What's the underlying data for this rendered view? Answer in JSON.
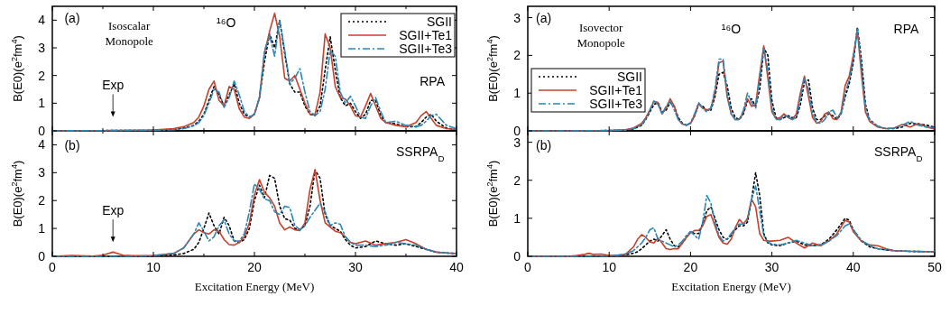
{
  "chart_data": [
    {
      "type": "line",
      "tick_labels": "y",
      "ylabel": "B(E0)(e$^{2}$fm$^{4}$)",
      "xlim": [
        0,
        40
      ],
      "xticks": [
        0,
        {
          "value": 5,
          "label": null
        },
        10,
        {
          "value": 15,
          "label": null
        },
        20,
        {
          "value": 25,
          "label": null
        },
        30,
        {
          "value": 35,
          "label": null
        },
        40
      ],
      "ylim": [
        0,
        4.5
      ],
      "yticks": [
        0,
        1,
        2,
        3,
        4
      ],
      "legend": "top right",
      "annotations": [
        "(a)",
        "Isoscalar Monopole",
        "¹⁶O",
        "RPA",
        "Exp"
      ],
      "x": [
        0,
        5,
        10,
        12,
        13,
        14,
        14.5,
        15,
        15.5,
        16,
        16.5,
        17,
        17.5,
        18,
        18.5,
        19,
        19.5,
        20,
        20.5,
        21,
        21.5,
        22,
        22.5,
        23,
        23.5,
        24,
        24.5,
        25,
        25.5,
        26,
        26.5,
        27,
        27.5,
        28,
        28.5,
        29,
        29.5,
        30,
        30.5,
        31,
        31.5,
        32,
        32.5,
        33,
        34,
        35,
        36,
        36.5,
        37,
        37.5,
        38,
        39,
        40
      ],
      "series": [
        {
          "name": "SGII",
          "color": "#000000",
          "line_style": "dotted",
          "values": [
            0,
            0.01,
            0.02,
            0.05,
            0.1,
            0.2,
            0.35,
            0.6,
            1.1,
            1.6,
            1.3,
            0.9,
            1.3,
            1.7,
            1.0,
            0.6,
            0.5,
            0.6,
            1.2,
            2.5,
            3.5,
            3.0,
            4.0,
            2.8,
            1.7,
            1.4,
            1.4,
            0.9,
            0.6,
            0.55,
            0.9,
            2.2,
            3.4,
            2.2,
            1.2,
            0.9,
            1.0,
            0.7,
            0.45,
            0.6,
            1.1,
            1.1,
            0.55,
            0.3,
            0.25,
            0.15,
            0.15,
            0.3,
            0.5,
            0.6,
            0.35,
            0.1,
            0.05
          ]
        },
        {
          "name": "SGII+Te1",
          "color": "#c8402c",
          "line_style": "solid",
          "values": [
            0,
            0.01,
            0.03,
            0.08,
            0.15,
            0.3,
            0.5,
            0.9,
            1.5,
            1.8,
            1.1,
            0.9,
            1.6,
            1.5,
            0.8,
            0.5,
            0.45,
            0.6,
            1.2,
            2.8,
            3.6,
            4.25,
            3.4,
            1.9,
            1.8,
            2.0,
            1.5,
            1.0,
            0.6,
            0.6,
            1.4,
            3.5,
            3.0,
            1.6,
            1.2,
            1.15,
            0.9,
            0.55,
            0.5,
            0.9,
            1.35,
            0.9,
            0.45,
            0.3,
            0.2,
            0.15,
            0.3,
            0.55,
            0.7,
            0.45,
            0.2,
            0.08,
            0.05
          ]
        },
        {
          "name": "SGII+Te3",
          "color": "#2a86b5",
          "line_style": "dashed",
          "values": [
            0,
            0.01,
            0.02,
            0.04,
            0.08,
            0.18,
            0.3,
            0.55,
            1.0,
            1.5,
            1.4,
            0.85,
            1.2,
            1.8,
            1.3,
            0.7,
            0.5,
            0.6,
            1.2,
            2.9,
            3.45,
            2.7,
            4.0,
            2.9,
            1.7,
            1.9,
            2.25,
            1.4,
            0.7,
            0.55,
            0.7,
            1.5,
            2.9,
            2.7,
            1.4,
            1.0,
            1.25,
            0.9,
            0.5,
            0.45,
            0.9,
            1.2,
            0.7,
            0.3,
            0.35,
            0.2,
            0.15,
            0.2,
            0.35,
            0.55,
            0.6,
            0.2,
            0.08
          ]
        }
      ]
    },
    {
      "type": "line",
      "tick_labels": "y",
      "ylabel": "B(E0)(e$^{2}$fm$^{4}$)",
      "xlim": [
        0,
        50
      ],
      "xticks": [
        0,
        10,
        20,
        30,
        40,
        50
      ],
      "ylim": [
        0,
        3.3
      ],
      "yticks": [
        0,
        1,
        2,
        3
      ],
      "legend": "left",
      "annotations": [
        "(a)",
        "Isovector Monopole",
        "¹⁶O",
        "RPA"
      ],
      "x": [
        0,
        5,
        10,
        12,
        13,
        14,
        14.5,
        15,
        15.5,
        16,
        16.5,
        17,
        17.5,
        18,
        18.5,
        19,
        19.5,
        20,
        20.5,
        21,
        21.5,
        22,
        22.5,
        23,
        23.5,
        24,
        24.5,
        25,
        25.5,
        26,
        26.5,
        27,
        27.5,
        28,
        28.5,
        29,
        29.5,
        30,
        30.5,
        31,
        31.5,
        32,
        32.5,
        33,
        33.5,
        34,
        34.5,
        35,
        35.5,
        36,
        36.5,
        37,
        37.5,
        38,
        38.5,
        39,
        39.5,
        40,
        40.5,
        41,
        41.5,
        42,
        43,
        44,
        45,
        46,
        47,
        48,
        49,
        50
      ],
      "series": [
        {
          "name": "SGII",
          "color": "#000000",
          "line_style": "dotted",
          "values": [
            0,
            0,
            0.01,
            0.02,
            0.05,
            0.15,
            0.3,
            0.5,
            0.7,
            0.75,
            0.5,
            0.55,
            0.75,
            0.65,
            0.35,
            0.2,
            0.15,
            0.2,
            0.4,
            0.7,
            0.65,
            0.55,
            0.55,
            0.9,
            1.5,
            1.55,
            1.2,
            0.6,
            0.35,
            0.3,
            0.45,
            0.8,
            0.85,
            0.65,
            1.1,
            2.2,
            2.0,
            0.8,
            0.35,
            0.3,
            0.35,
            0.4,
            0.35,
            0.35,
            0.7,
            1.3,
            1.35,
            0.6,
            0.3,
            0.3,
            0.4,
            0.45,
            0.4,
            0.3,
            0.45,
            0.9,
            1.25,
            1.8,
            2.75,
            1.9,
            0.7,
            0.3,
            0.12,
            0.06,
            0.06,
            0.1,
            0.2,
            0.18,
            0.15,
            0.1
          ]
        },
        {
          "name": "SGII+Te1",
          "color": "#c8402c",
          "line_style": "solid",
          "values": [
            0,
            0,
            0.01,
            0.03,
            0.08,
            0.2,
            0.35,
            0.55,
            0.78,
            0.75,
            0.45,
            0.6,
            0.85,
            0.65,
            0.3,
            0.18,
            0.15,
            0.2,
            0.4,
            0.72,
            0.6,
            0.55,
            0.6,
            1.0,
            1.8,
            1.85,
            0.9,
            0.45,
            0.3,
            0.3,
            0.5,
            0.85,
            0.65,
            0.7,
            1.5,
            2.25,
            1.4,
            0.5,
            0.32,
            0.35,
            0.45,
            0.35,
            0.3,
            0.45,
            1.0,
            1.45,
            0.9,
            0.35,
            0.2,
            0.25,
            0.45,
            0.5,
            0.32,
            0.3,
            0.5,
            1.2,
            1.45,
            2.0,
            2.65,
            1.5,
            0.5,
            0.25,
            0.1,
            0.06,
            0.07,
            0.17,
            0.1,
            0.2,
            0.1,
            0.05
          ]
        },
        {
          "name": "SGII+Te3",
          "color": "#2a86b5",
          "line_style": "dashed",
          "values": [
            0,
            0,
            0.01,
            0.02,
            0.06,
            0.16,
            0.32,
            0.55,
            0.8,
            0.7,
            0.45,
            0.65,
            0.8,
            0.55,
            0.3,
            0.18,
            0.15,
            0.22,
            0.45,
            0.75,
            0.6,
            0.5,
            0.6,
            1.1,
            1.9,
            1.9,
            1.0,
            0.45,
            0.3,
            0.3,
            0.55,
            1.0,
            0.75,
            0.6,
            1.4,
            2.2,
            1.6,
            0.6,
            0.3,
            0.3,
            0.4,
            0.38,
            0.3,
            0.35,
            0.9,
            1.4,
            1.1,
            0.45,
            0.22,
            0.2,
            0.3,
            0.5,
            0.55,
            0.35,
            0.45,
            1.0,
            1.35,
            1.9,
            2.7,
            1.7,
            0.6,
            0.28,
            0.12,
            0.06,
            0.07,
            0.15,
            0.25,
            0.15,
            0.1,
            0.08
          ]
        }
      ]
    },
    {
      "type": "line",
      "xlabel": "Excitation Energy (MeV)",
      "ylabel": "B(E0)(e$^{2}$fm$^{4}$)",
      "xlim": [
        0,
        40
      ],
      "xticks": [
        0,
        {
          "value": 5,
          "label": null
        },
        10,
        {
          "value": 15,
          "label": null
        },
        20,
        {
          "value": 25,
          "label": null
        },
        30,
        {
          "value": 35,
          "label": null
        },
        40
      ],
      "ylim": [
        0,
        4.5
      ],
      "yticks": [
        0,
        1,
        2,
        3,
        4
      ],
      "annotations": [
        "(b)",
        "SSRPA$_{D}$",
        "Exp"
      ],
      "x": [
        0,
        2,
        4,
        5,
        5.5,
        6,
        6.5,
        7,
        8,
        10,
        12,
        13,
        14,
        14.5,
        15,
        15.5,
        16,
        16.5,
        17,
        17.5,
        18,
        18.5,
        19,
        19.5,
        20,
        20.5,
        21,
        21.5,
        22,
        22.5,
        23,
        23.5,
        24,
        24.5,
        25,
        25.5,
        26,
        26.5,
        27,
        27.5,
        28,
        28.5,
        29,
        29.5,
        30,
        31,
        32,
        33,
        34,
        35,
        36,
        37,
        38,
        39,
        40
      ],
      "series": [
        {
          "color": "#000000",
          "line_style": "dotted",
          "values": [
            0,
            0,
            0,
            0,
            0,
            0,
            0,
            0,
            0,
            0.01,
            0.05,
            0.1,
            0.25,
            0.5,
            1.0,
            1.55,
            1.1,
            0.8,
            1.4,
            1.1,
            0.55,
            0.5,
            0.6,
            1.0,
            2.0,
            2.55,
            2.1,
            2.9,
            2.8,
            1.8,
            1.35,
            1.3,
            1.0,
            0.95,
            1.1,
            1.8,
            3.1,
            2.8,
            1.5,
            1.1,
            1.0,
            0.9,
            0.6,
            0.4,
            0.3,
            0.35,
            0.55,
            0.45,
            0.4,
            0.45,
            0.35,
            0.25,
            0.15,
            0.12,
            0.1
          ]
        },
        {
          "color": "#c8402c",
          "line_style": "solid",
          "values": [
            0,
            0.03,
            0.01,
            0.04,
            0.1,
            0.15,
            0.1,
            0.04,
            0.02,
            0.03,
            0.1,
            0.3,
            0.8,
            0.95,
            0.85,
            0.8,
            0.95,
            0.9,
            0.6,
            0.42,
            0.4,
            0.5,
            0.7,
            1.2,
            2.2,
            2.75,
            2.3,
            2.1,
            1.8,
            1.2,
            0.95,
            1.05,
            0.95,
            0.92,
            1.2,
            2.4,
            3.1,
            2.0,
            1.2,
            1.05,
            0.9,
            0.85,
            0.7,
            0.5,
            0.45,
            0.55,
            0.4,
            0.45,
            0.5,
            0.6,
            0.45,
            0.25,
            0.15,
            0.12,
            0.1
          ]
        },
        {
          "color": "#2a86b5",
          "line_style": "dashed",
          "values": [
            0,
            0,
            0,
            0,
            0,
            0,
            0,
            0,
            0,
            0.02,
            0.1,
            0.3,
            0.8,
            1.2,
            0.9,
            0.55,
            0.7,
            1.1,
            1.3,
            0.8,
            0.55,
            0.55,
            0.8,
            1.6,
            2.6,
            2.4,
            2.05,
            2.0,
            1.6,
            1.5,
            1.8,
            1.75,
            1.1,
            0.95,
            1.1,
            1.4,
            1.65,
            1.9,
            1.6,
            1.1,
            1.2,
            1.15,
            0.7,
            0.5,
            0.4,
            0.4,
            0.35,
            0.4,
            0.5,
            0.45,
            0.4,
            0.25,
            0.15,
            0.12,
            0.1
          ]
        }
      ]
    },
    {
      "type": "line",
      "xlabel": "Excitation Energy (MeV)",
      "ylabel": "B(E0)(e$^{2}$fm$^{4}$)",
      "xlim": [
        0,
        50
      ],
      "xticks": [
        0,
        10,
        20,
        30,
        40,
        50
      ],
      "ylim": [
        0,
        3.3
      ],
      "yticks": [
        0,
        1,
        2,
        3
      ],
      "annotations": [
        "(b)",
        "SSRPA$_{D}$"
      ],
      "x": [
        0,
        5,
        6,
        7,
        7.5,
        8,
        9,
        10,
        11,
        12,
        13,
        13.5,
        14,
        14.5,
        15,
        15.5,
        16,
        16.5,
        17,
        17.5,
        18,
        18.5,
        19,
        19.5,
        20,
        20.5,
        21,
        21.5,
        22,
        22.5,
        23,
        23.5,
        24,
        24.5,
        25,
        25.5,
        26,
        26.5,
        27,
        27.5,
        28,
        28.5,
        29,
        29.5,
        30,
        31,
        32,
        33,
        34,
        35,
        36,
        37,
        38,
        39,
        39.5,
        40,
        41,
        42,
        43,
        44,
        45,
        47,
        50
      ],
      "series": [
        {
          "color": "#000000",
          "line_style": "dotted",
          "values": [
            0,
            0,
            0,
            0,
            0,
            0,
            0,
            0.01,
            0.02,
            0.04,
            0.08,
            0.12,
            0.2,
            0.3,
            0.4,
            0.45,
            0.4,
            0.55,
            0.7,
            0.45,
            0.28,
            0.25,
            0.35,
            0.5,
            0.65,
            0.6,
            0.6,
            0.85,
            1.2,
            1.3,
            1.0,
            0.7,
            0.5,
            0.45,
            0.55,
            0.7,
            0.8,
            0.8,
            0.9,
            1.5,
            2.2,
            1.6,
            0.6,
            0.35,
            0.3,
            0.28,
            0.35,
            0.4,
            0.3,
            0.28,
            0.3,
            0.45,
            0.7,
            1.0,
            0.95,
            0.7,
            0.4,
            0.25,
            0.2,
            0.17,
            0.15,
            0.13,
            0.12
          ]
        },
        {
          "color": "#c8402c",
          "line_style": "solid",
          "values": [
            0,
            0,
            0.02,
            0.05,
            0.08,
            0.05,
            0.06,
            0.02,
            0.02,
            0.05,
            0.25,
            0.45,
            0.57,
            0.5,
            0.38,
            0.35,
            0.48,
            0.35,
            0.2,
            0.18,
            0.2,
            0.2,
            0.35,
            0.5,
            0.62,
            0.68,
            0.68,
            0.8,
            1.05,
            1.1,
            0.8,
            0.5,
            0.35,
            0.32,
            0.45,
            0.75,
            0.97,
            0.85,
            1.0,
            1.5,
            1.3,
            0.6,
            0.42,
            0.4,
            0.4,
            0.42,
            0.5,
            0.35,
            0.22,
            0.35,
            0.28,
            0.4,
            0.6,
            0.95,
            0.9,
            0.65,
            0.4,
            0.3,
            0.28,
            0.2,
            0.15,
            0.13,
            0.12
          ]
        },
        {
          "color": "#2a86b5",
          "line_style": "dashed",
          "values": [
            0,
            0,
            0,
            0,
            0,
            0,
            0,
            0.01,
            0.03,
            0.06,
            0.15,
            0.25,
            0.35,
            0.5,
            0.7,
            0.75,
            0.45,
            0.4,
            0.35,
            0.3,
            0.25,
            0.3,
            0.4,
            0.55,
            0.65,
            0.55,
            0.45,
            0.9,
            1.6,
            1.4,
            0.9,
            0.55,
            0.4,
            0.45,
            0.6,
            0.75,
            0.85,
            0.85,
            0.95,
            1.5,
            1.85,
            1.2,
            0.55,
            0.38,
            0.32,
            0.3,
            0.35,
            0.42,
            0.35,
            0.28,
            0.3,
            0.4,
            0.55,
            0.8,
            0.85,
            0.7,
            0.42,
            0.28,
            0.2,
            0.17,
            0.15,
            0.13,
            0.12
          ]
        }
      ]
    }
  ]
}
